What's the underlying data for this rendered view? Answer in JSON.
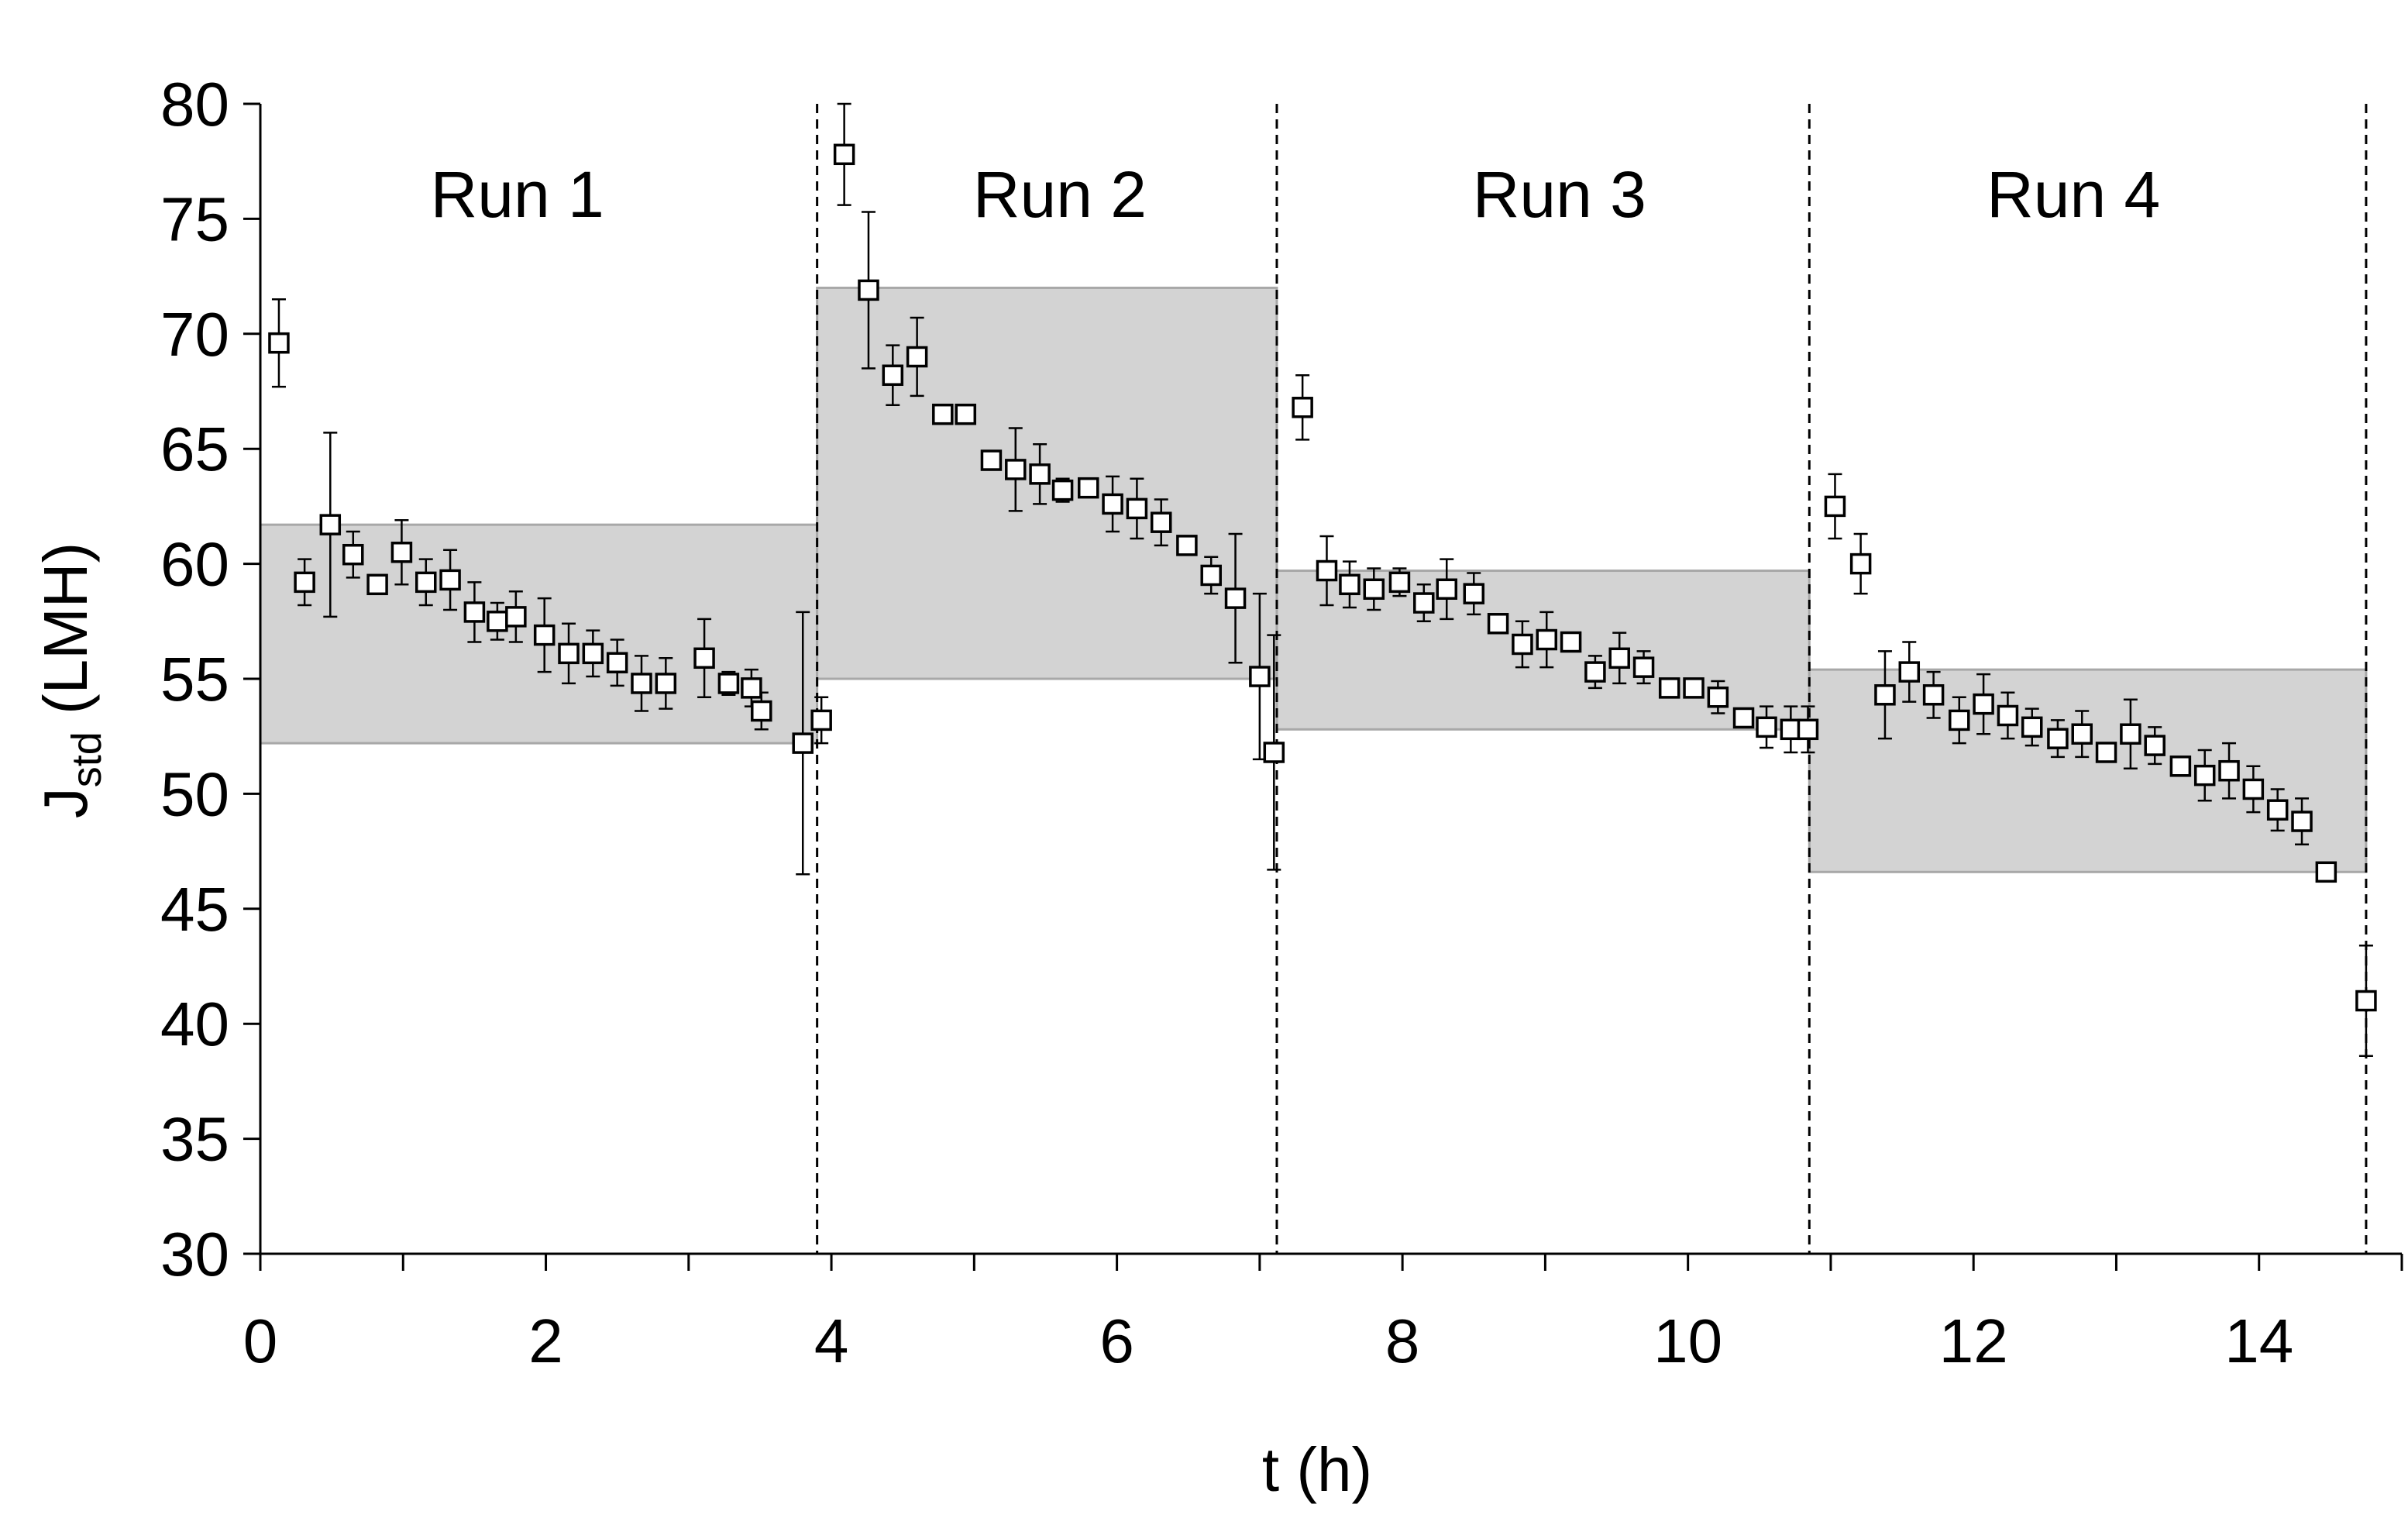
{
  "chart_data": {
    "type": "scatter",
    "title": "",
    "xlabel": "t (h)",
    "ylabel": {
      "main": "J",
      "sub": "std",
      "unit": " (LMH)"
    },
    "xlim": [
      0,
      15
    ],
    "ylim": [
      30,
      80
    ],
    "xticks": [
      0,
      2,
      4,
      6,
      8,
      10,
      12,
      14
    ],
    "yticks": [
      30,
      35,
      40,
      45,
      50,
      55,
      60,
      65,
      70,
      75,
      80
    ],
    "grid": false,
    "legend": "none",
    "colors": {
      "marker_fill": "#ffffff",
      "marker_stroke": "#000000",
      "band_fill": "#d3d3d3",
      "band_stroke": "#a8a8a8"
    },
    "run_dividers": [
      3.9,
      7.12,
      10.85,
      14.75
    ],
    "runs": [
      {
        "label": "Run 1",
        "label_x": 1.8,
        "band_x": [
          0,
          3.9
        ],
        "band_y": [
          52.2,
          61.7
        ]
      },
      {
        "label": "Run 2",
        "label_x": 5.6,
        "band_x": [
          3.9,
          7.12
        ],
        "band_y": [
          55.0,
          72.0
        ]
      },
      {
        "label": "Run 3",
        "label_x": 9.1,
        "band_x": [
          7.12,
          10.85
        ],
        "band_y": [
          52.8,
          59.7
        ]
      },
      {
        "label": "Run 4",
        "label_x": 12.7,
        "band_x": [
          10.85,
          14.75
        ],
        "band_y": [
          46.6,
          55.4
        ]
      }
    ],
    "series": [
      {
        "points": [
          [
            0.13,
            69.6,
            1.9
          ],
          [
            0.31,
            59.2,
            1.0
          ],
          [
            0.49,
            61.7,
            4.0
          ],
          [
            0.65,
            60.4,
            1.0
          ],
          [
            0.82,
            59.1,
            0.3
          ],
          [
            0.99,
            60.5,
            1.4
          ],
          [
            1.16,
            59.2,
            1.0
          ],
          [
            1.33,
            59.3,
            1.3
          ],
          [
            1.5,
            57.9,
            1.3
          ],
          [
            1.66,
            57.5,
            0.8
          ],
          [
            1.79,
            57.7,
            1.1
          ],
          [
            1.99,
            56.9,
            1.6
          ],
          [
            2.16,
            56.1,
            1.3
          ],
          [
            2.33,
            56.1,
            1.0
          ],
          [
            2.5,
            55.7,
            1.0
          ],
          [
            2.67,
            54.8,
            1.2
          ],
          [
            2.84,
            54.8,
            1.1
          ],
          [
            3.11,
            55.9,
            1.7
          ],
          [
            3.28,
            54.8,
            0.5
          ],
          [
            3.44,
            54.6,
            0.8
          ],
          [
            3.51,
            53.6,
            0.8
          ],
          [
            3.8,
            52.2,
            5.7
          ],
          [
            3.93,
            53.2,
            1.0
          ],
          [
            4.09,
            77.8,
            2.2
          ],
          [
            4.26,
            71.9,
            3.4
          ],
          [
            4.43,
            68.2,
            1.3
          ],
          [
            4.6,
            69.0,
            1.7
          ],
          [
            4.78,
            66.5,
            0.2
          ],
          [
            4.94,
            66.5,
            0.2
          ],
          [
            5.12,
            64.5,
            0.3
          ],
          [
            5.29,
            64.1,
            1.8
          ],
          [
            5.46,
            63.9,
            1.3
          ],
          [
            5.62,
            63.2,
            0.5
          ],
          [
            5.8,
            63.3,
            0.4
          ],
          [
            5.97,
            62.6,
            1.2
          ],
          [
            6.14,
            62.4,
            1.3
          ],
          [
            6.31,
            61.8,
            1.0
          ],
          [
            6.49,
            60.8,
            0.3
          ],
          [
            6.66,
            59.5,
            0.8
          ],
          [
            6.83,
            58.5,
            2.8
          ],
          [
            7.0,
            55.1,
            3.6
          ],
          [
            7.1,
            51.8,
            5.1
          ],
          [
            7.3,
            66.8,
            1.4
          ],
          [
            7.47,
            59.7,
            1.5
          ],
          [
            7.63,
            59.1,
            1.0
          ],
          [
            7.8,
            58.9,
            0.9
          ],
          [
            7.98,
            59.2,
            0.6
          ],
          [
            8.15,
            58.3,
            0.8
          ],
          [
            8.31,
            58.9,
            1.3
          ],
          [
            8.5,
            58.7,
            0.9
          ],
          [
            8.67,
            57.4,
            0.3
          ],
          [
            8.84,
            56.5,
            1.0
          ],
          [
            9.01,
            56.7,
            1.2
          ],
          [
            9.18,
            56.6,
            0.4
          ],
          [
            9.35,
            55.3,
            0.7
          ],
          [
            9.52,
            55.9,
            1.1
          ],
          [
            9.69,
            55.5,
            0.7
          ],
          [
            9.87,
            54.6,
            0.3
          ],
          [
            10.04,
            54.6,
            0.3
          ],
          [
            10.21,
            54.2,
            0.7
          ],
          [
            10.39,
            53.3,
            0.3
          ],
          [
            10.55,
            52.9,
            0.9
          ],
          [
            10.72,
            52.8,
            1.0
          ],
          [
            10.84,
            52.8,
            1.0
          ],
          [
            11.03,
            62.5,
            1.4
          ],
          [
            11.21,
            60.0,
            1.3
          ],
          [
            11.38,
            54.3,
            1.9
          ],
          [
            11.55,
            55.3,
            1.3
          ],
          [
            11.72,
            54.3,
            1.0
          ],
          [
            11.9,
            53.2,
            1.0
          ],
          [
            12.07,
            53.9,
            1.3
          ],
          [
            12.24,
            53.4,
            1.0
          ],
          [
            12.41,
            52.9,
            0.8
          ],
          [
            12.59,
            52.4,
            0.8
          ],
          [
            12.76,
            52.6,
            1.0
          ],
          [
            12.93,
            51.8,
            0.3
          ],
          [
            13.1,
            52.6,
            1.5
          ],
          [
            13.27,
            52.1,
            0.8
          ],
          [
            13.45,
            51.2,
            0.3
          ],
          [
            13.62,
            50.8,
            1.1
          ],
          [
            13.79,
            51.0,
            1.2
          ],
          [
            13.96,
            50.2,
            1.0
          ],
          [
            14.13,
            49.3,
            0.9
          ],
          [
            14.3,
            48.8,
            1.0
          ],
          [
            14.47,
            46.6,
            0.4
          ],
          [
            14.75,
            41.0,
            2.4
          ]
        ]
      }
    ]
  }
}
